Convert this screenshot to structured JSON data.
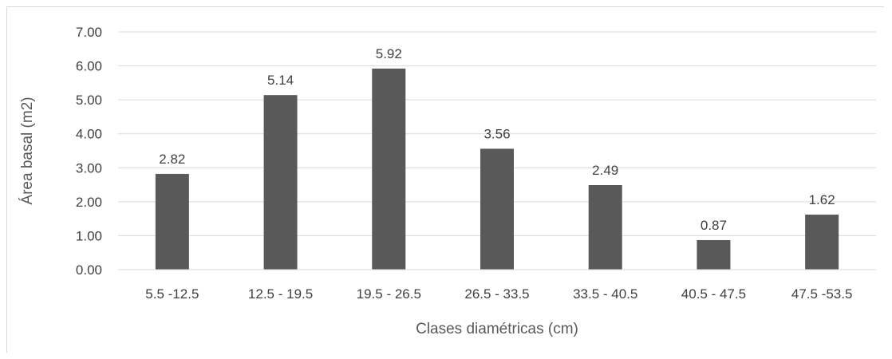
{
  "chart_data": {
    "type": "bar",
    "categories": [
      "5.5 -12.5",
      "12.5 - 19.5",
      "19.5 - 26.5",
      "26.5 - 33.5",
      "33.5 - 40.5",
      "40.5 - 47.5",
      "47.5 -53.5"
    ],
    "values": [
      2.82,
      5.14,
      5.92,
      3.56,
      2.49,
      0.87,
      1.62
    ],
    "value_labels": [
      "2.82",
      "5.14",
      "5.92",
      "3.56",
      "2.49",
      "0.87",
      "1.62"
    ],
    "title": "",
    "xlabel": "Clases diamétricas (cm)",
    "ylabel": "Área basal (m2)",
    "ylim": [
      0,
      7
    ],
    "yticks": [
      "0.00",
      "1.00",
      "2.00",
      "3.00",
      "4.00",
      "5.00",
      "6.00",
      "7.00"
    ],
    "grid": true,
    "legend": "none",
    "bar_color": "#595959",
    "grid_color": "#d9d9d9"
  }
}
